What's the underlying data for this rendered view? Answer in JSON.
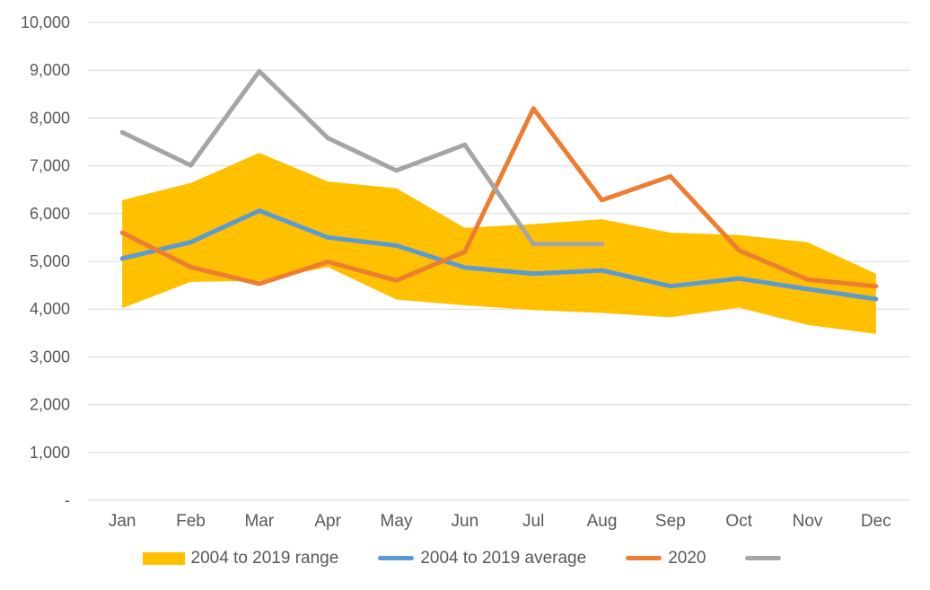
{
  "chart_data": {
    "type": "line",
    "title": "",
    "xlabel": "",
    "ylabel": "",
    "categories": [
      "Jan",
      "Feb",
      "Mar",
      "Apr",
      "May",
      "Jun",
      "Jul",
      "Aug",
      "Sep",
      "Oct",
      "Nov",
      "Dec"
    ],
    "y_axis": {
      "min": 0,
      "max": 10000,
      "step": 1000,
      "tick_labels": [
        "-",
        "1,000",
        "2,000",
        "3,000",
        "4,000",
        "5,000",
        "6,000",
        "7,000",
        "8,000",
        "9,000",
        "10,000"
      ]
    },
    "grid": true,
    "legend_position": "bottom",
    "series": [
      {
        "name": "2004 to 2019 range",
        "type": "band",
        "color": "#FFC000",
        "upper": [
          6280,
          6640,
          7270,
          6670,
          6530,
          5700,
          5780,
          5880,
          5600,
          5550,
          5400,
          4740
        ],
        "lower": [
          4020,
          4570,
          4590,
          4880,
          4200,
          4080,
          3980,
          3920,
          3830,
          4030,
          3670,
          3480
        ]
      },
      {
        "name": "2004 to 2019 average",
        "type": "line",
        "color": "#5B9BD5",
        "values": [
          5060,
          5400,
          6060,
          5500,
          5330,
          4870,
          4740,
          4810,
          4480,
          4640,
          4420,
          4210
        ]
      },
      {
        "name": "2020",
        "type": "line",
        "color": "#ED7D31",
        "values": [
          5600,
          4880,
          4530,
          4990,
          4600,
          5200,
          8200,
          6280,
          6780,
          5230,
          4620,
          4480
        ]
      },
      {
        "name": "",
        "type": "line",
        "color": "#A5A5A5",
        "values": [
          7700,
          7010,
          8980,
          7580,
          6900,
          7440,
          5360,
          5360,
          null,
          null,
          null,
          null
        ]
      }
    ],
    "colors": {
      "gridline": "#D9D9D9",
      "axis_line": "#D9D9D9",
      "axis_text": "#595959",
      "background": "#FFFFFF"
    }
  }
}
